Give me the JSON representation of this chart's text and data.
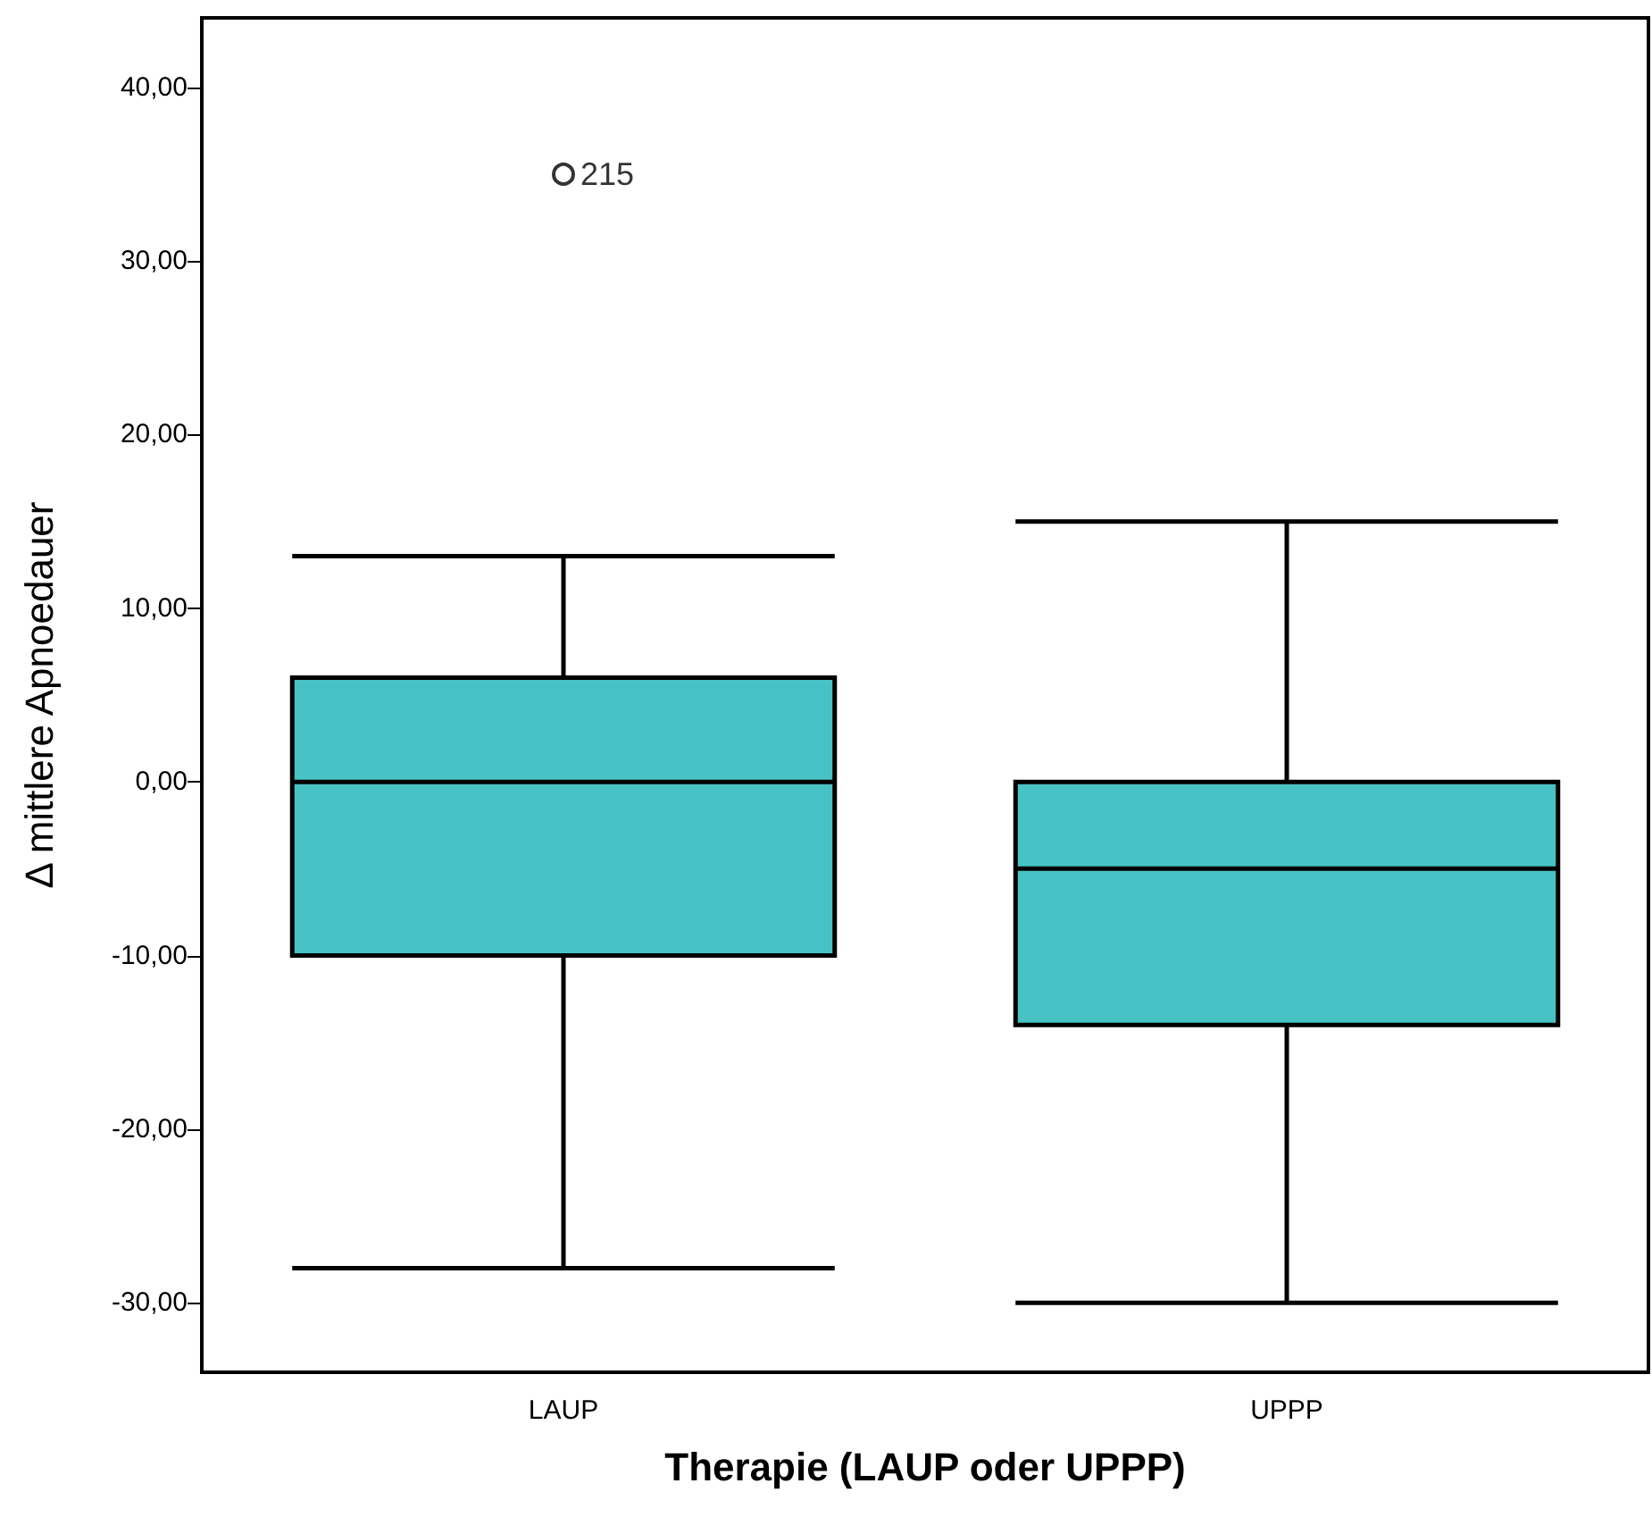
{
  "chart_data": {
    "type": "box",
    "xlabel": "Therapie (LAUP oder UPPP)",
    "ylabel": "Δ mittlere Apnoedauer",
    "categories": [
      "LAUP",
      "UPPP"
    ],
    "color": "#48c2c5",
    "boxes": [
      {
        "low": -28,
        "q1": -10,
        "median": 0,
        "q3": 6,
        "high": 13,
        "outliers": [
          35
        ]
      },
      {
        "low": -30,
        "q1": -14,
        "median": -5,
        "q3": 0,
        "high": 15
      }
    ],
    "ylim": [
      -34,
      44
    ],
    "yticks": [
      {
        "value": -30,
        "label": "-30,00"
      },
      {
        "value": -20,
        "label": "-20,00"
      },
      {
        "value": -10,
        "label": "-10,00"
      },
      {
        "value": 0,
        "label": "0,00"
      },
      {
        "value": 10,
        "label": "10,00"
      },
      {
        "value": 20,
        "label": "20,00"
      },
      {
        "value": 30,
        "label": "30,00"
      },
      {
        "value": 40,
        "label": "40,00"
      }
    ],
    "annotations": [
      "215"
    ],
    "grid": false,
    "marker": "circle"
  }
}
